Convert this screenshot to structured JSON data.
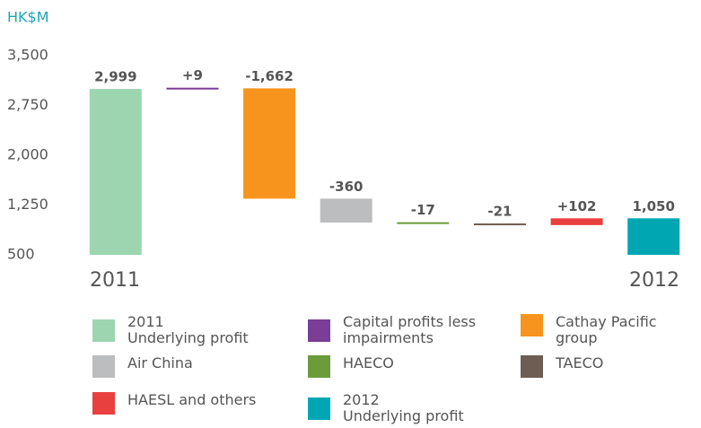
{
  "chart_data": {
    "type": "waterfall",
    "y_label": "HK$M",
    "start_label": "2011",
    "end_label": "2012",
    "series": [
      {
        "name": "2011\nUnderlying profit",
        "color": "#9ed5b1"
      },
      {
        "name": "Capital profits less\nimpairments",
        "color": "#7a3e97"
      },
      {
        "name": "Cathay Pacific group",
        "color": "#f7941d"
      },
      {
        "name": "Air China",
        "color": "#bcbdbf"
      },
      {
        "name": "HAECO",
        "color": "#6b9b3a"
      },
      {
        "name": "TAECO",
        "color": "#6e5d52"
      },
      {
        "name": "HAESL and others",
        "color": "#e8403f"
      },
      {
        "name": "2012\nUnderlying profit",
        "color": "#00a7b3"
      }
    ],
    "values": [
      2999,
      9,
      -1662,
      -360,
      -17,
      -21,
      102,
      1050
    ],
    "value_labels": [
      "2,999",
      "+9",
      "-1,662",
      "-360",
      "-17",
      "-21",
      "+102",
      "1,050"
    ],
    "ylim": [
      500,
      3500
    ],
    "yticks": [
      500,
      {
        "value": 1250,
        "label": "1,250"
      },
      {
        "value": 2000,
        "label": "2,000"
      },
      {
        "value": 2750,
        "label": "2,750"
      },
      {
        "value": 3500,
        "label": "3,500"
      }
    ]
  }
}
